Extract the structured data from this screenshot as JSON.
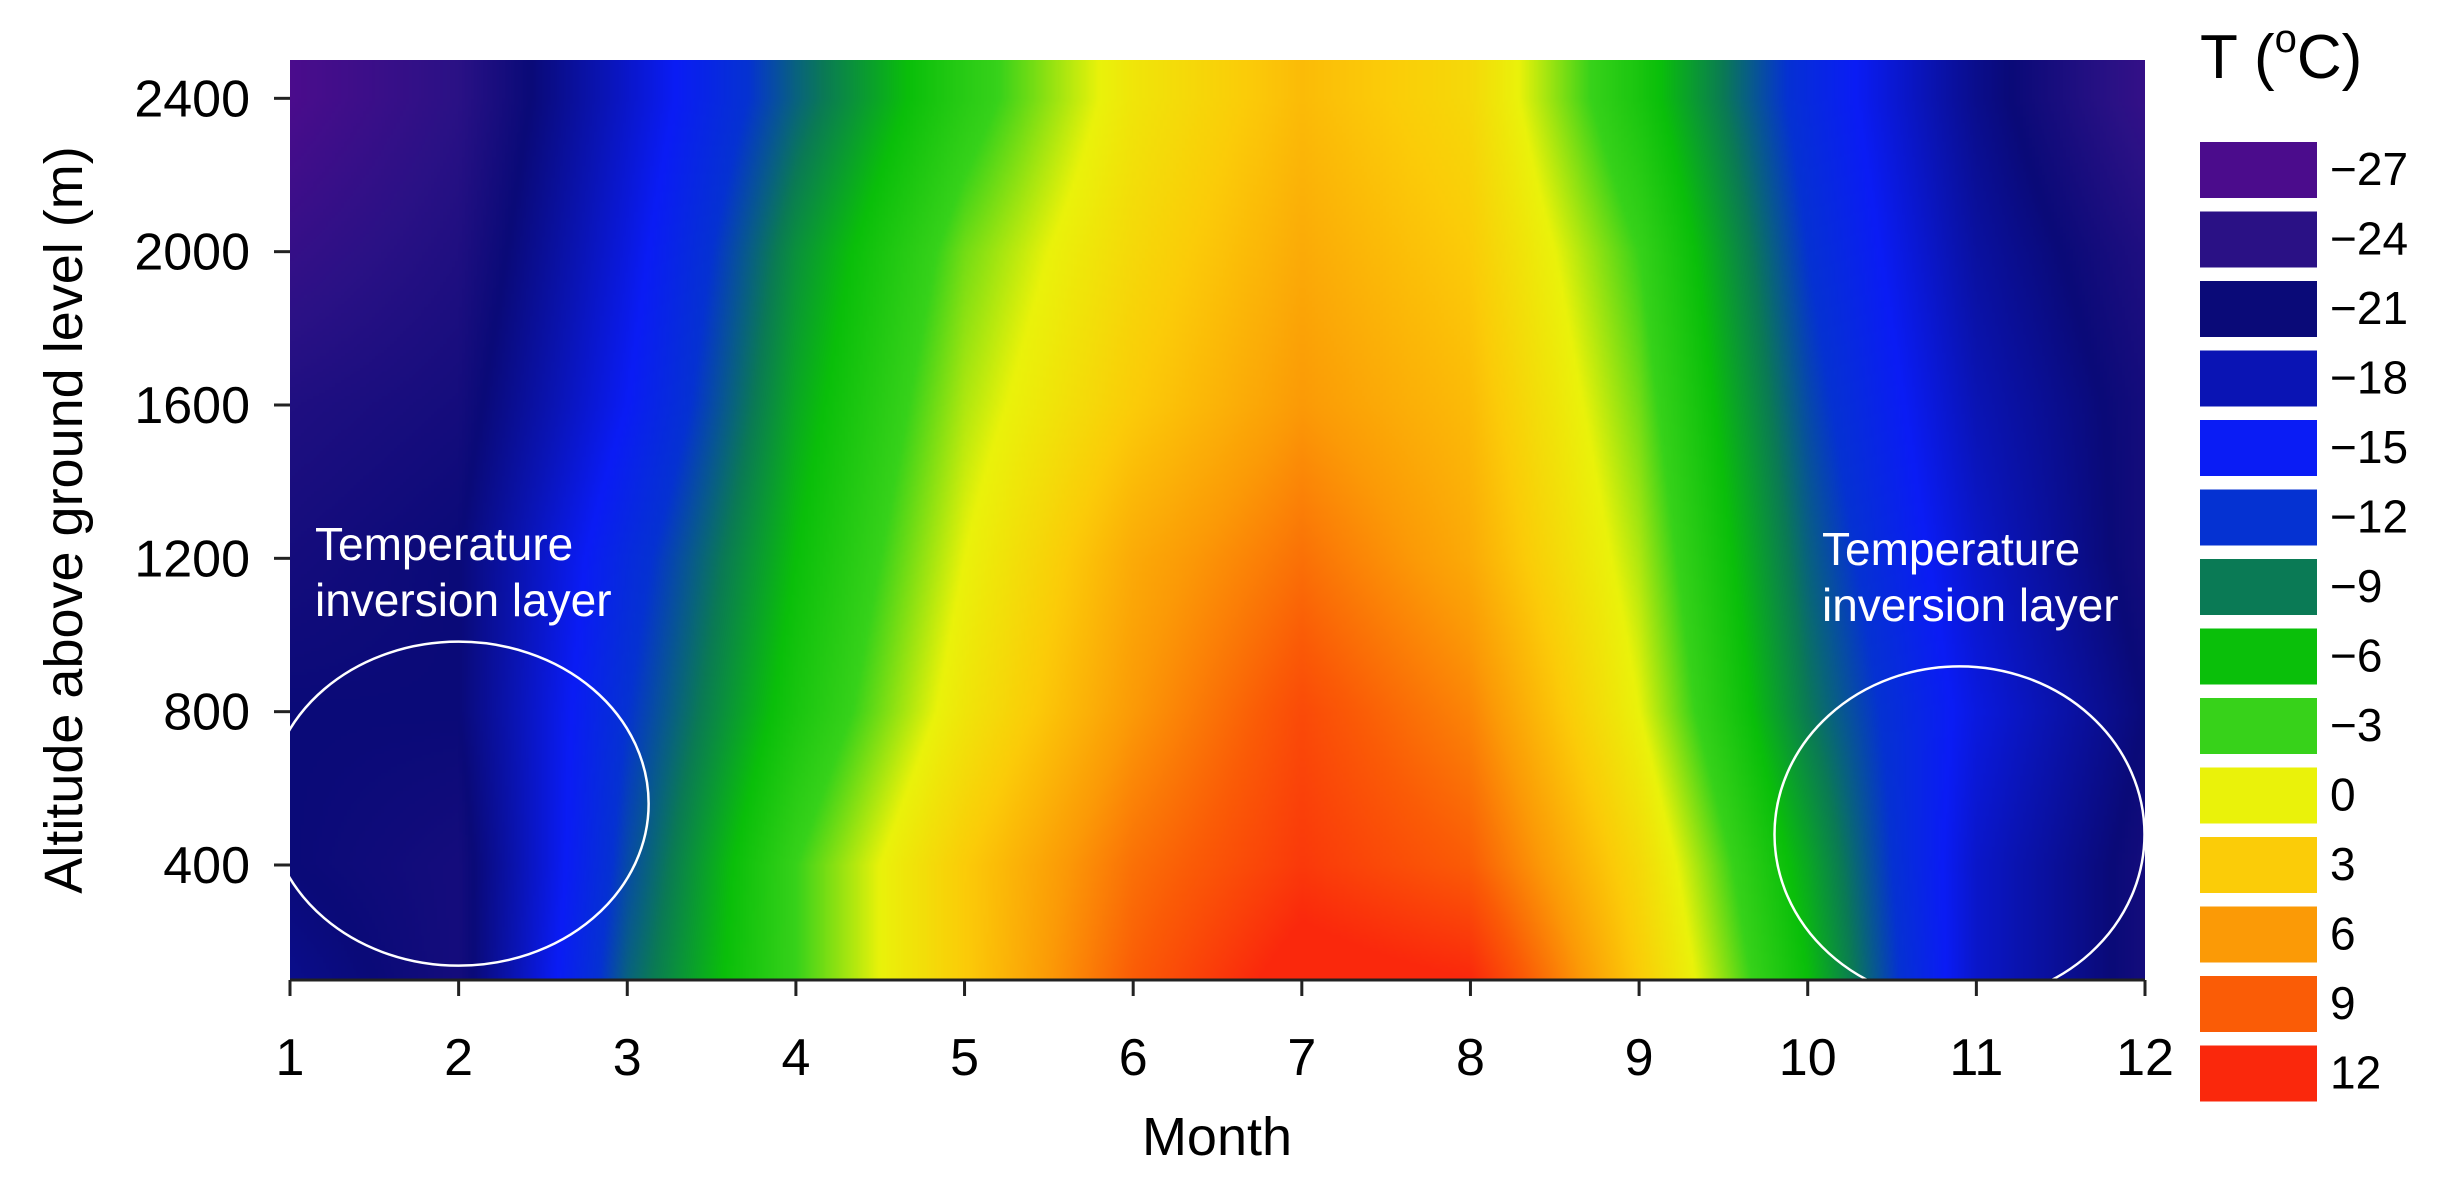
{
  "chart_data": {
    "type": "heatmap",
    "title": "",
    "xlabel": "Month",
    "ylabel": "Altitude above ground level (m)",
    "xlim": [
      1,
      12
    ],
    "ylim": [
      100,
      2500
    ],
    "x_ticks": [
      1,
      2,
      3,
      4,
      5,
      6,
      7,
      8,
      9,
      10,
      11,
      12
    ],
    "y_ticks": [
      400,
      800,
      1200,
      1600,
      2000,
      2400
    ],
    "x": [
      1,
      2,
      3,
      4,
      5,
      6,
      7,
      8,
      9,
      10,
      11,
      12
    ],
    "y": [
      100,
      400,
      800,
      1200,
      1600,
      2000,
      2400,
      2500
    ],
    "z": [
      [
        -20,
        -22,
        -10,
        -3,
        3,
        9,
        13,
        12,
        3,
        -6,
        -17,
        -22
      ],
      [
        -21,
        -22,
        -11,
        -3,
        3,
        8,
        11,
        9,
        2,
        -7,
        -17,
        -22
      ],
      [
        -21,
        -21,
        -12,
        -5,
        1,
        6,
        10,
        7,
        0,
        -9,
        -16,
        -21
      ],
      [
        -22,
        -21,
        -13,
        -6,
        0,
        5,
        8,
        5,
        -1,
        -10,
        -17,
        -22
      ],
      [
        -23,
        -22,
        -15,
        -7,
        -1,
        3,
        6,
        4,
        -2,
        -11,
        -18,
        -22
      ],
      [
        -25,
        -23,
        -16,
        -8,
        -2,
        2,
        5,
        3,
        -3,
        -12,
        -19,
        -23
      ],
      [
        -27,
        -24,
        -17,
        -10,
        -4,
        1,
        4,
        2,
        -5,
        -13,
        -20,
        -25
      ],
      [
        -27,
        -24,
        -17,
        -10,
        -4,
        1,
        4,
        2,
        -5,
        -13,
        -20,
        -25
      ]
    ],
    "colorbar": {
      "title_main": "T (",
      "title_sup": "o",
      "title_end": "C)",
      "levels": [
        {
          "label": "−27",
          "value": -27,
          "color": "#4b0c8c"
        },
        {
          "label": "−24",
          "value": -24,
          "color": "#2a1185"
        },
        {
          "label": "−21",
          "value": -21,
          "color": "#0a0a78"
        },
        {
          "label": "−18",
          "value": -18,
          "color": "#0a14b4"
        },
        {
          "label": "−15",
          "value": -15,
          "color": "#0a1cf5"
        },
        {
          "label": "−12",
          "value": -12,
          "color": "#0532d2"
        },
        {
          "label": "−9",
          "value": -9,
          "color": "#0a7a55"
        },
        {
          "label": "−6",
          "value": -6,
          "color": "#0abf0a"
        },
        {
          "label": "−3",
          "value": -3,
          "color": "#37d21a"
        },
        {
          "label": "0",
          "value": 0,
          "color": "#eaf20a"
        },
        {
          "label": "3",
          "value": 3,
          "color": "#fbcc08"
        },
        {
          "label": "6",
          "value": 6,
          "color": "#fb9a06"
        },
        {
          "label": "9",
          "value": 9,
          "color": "#fa5c06"
        },
        {
          "label": "12",
          "value": 12,
          "color": "#fa280c"
        }
      ]
    },
    "annotations": [
      {
        "line1": "Temperature",
        "line2": "inversion layer",
        "month": 2,
        "altitude": 560
      },
      {
        "line1": "Temperature",
        "line2": "inversion layer",
        "month": 10.9,
        "altitude": 480
      }
    ],
    "grid": false,
    "legend_position": "right"
  }
}
